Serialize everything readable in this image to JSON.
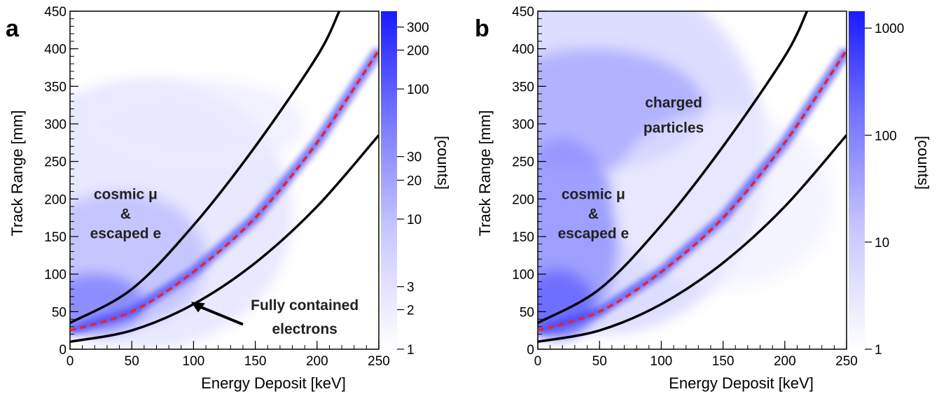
{
  "chart_data": [
    {
      "type": "heatmap",
      "panel_label": "a",
      "xlabel": "Energy Deposit [keV]",
      "ylabel": "Track Range [mm]",
      "xlim": [
        0,
        250
      ],
      "ylim": [
        0,
        450
      ],
      "x_ticks": [
        "0",
        "50",
        "100",
        "150",
        "200",
        "250"
      ],
      "y_ticks": [
        "0",
        "50",
        "100",
        "150",
        "200",
        "250",
        "300",
        "350",
        "400",
        "450"
      ],
      "colorbar": {
        "label": "[counts]",
        "scale": "log",
        "range": [
          1,
          400
        ],
        "ticks": [
          "1",
          "2",
          "3",
          "10",
          "20",
          "30",
          "100",
          "200",
          "300"
        ],
        "color_low": "#ffffff",
        "color_high": "#1a1aff"
      },
      "curves": [
        {
          "style": "solid",
          "color": "#000000",
          "x": [
            0,
            50,
            100,
            150,
            200,
            218
          ],
          "y": [
            35,
            80,
            165,
            270,
            390,
            450
          ]
        },
        {
          "style": "dashed",
          "color": "#ee2222",
          "x": [
            0,
            50,
            100,
            150,
            200,
            250
          ],
          "y": [
            25,
            50,
            103,
            175,
            275,
            398
          ]
        },
        {
          "style": "solid",
          "color": "#000000",
          "x": [
            0,
            50,
            100,
            150,
            200,
            250
          ],
          "y": [
            10,
            25,
            60,
            115,
            190,
            285
          ]
        }
      ],
      "annotations": [
        {
          "lines": [
            "cosmic  μ",
            "&",
            "escaped  e"
          ],
          "x": 45,
          "y": 200
        },
        {
          "lines": [
            "Fully contained",
            "electrons"
          ],
          "x": 190,
          "y": 48
        }
      ]
    },
    {
      "type": "heatmap",
      "panel_label": "b",
      "xlabel": "Energy Deposit [keV]",
      "ylabel": "Track Range [mm]",
      "xlim": [
        0,
        250
      ],
      "ylim": [
        0,
        450
      ],
      "x_ticks": [
        "0",
        "50",
        "100",
        "150",
        "200",
        "250"
      ],
      "y_ticks": [
        "0",
        "50",
        "100",
        "150",
        "200",
        "250",
        "300",
        "350",
        "400",
        "450"
      ],
      "colorbar": {
        "label": "[counts]",
        "scale": "log",
        "range": [
          1,
          1500
        ],
        "ticks": [
          "1",
          "10",
          "100",
          "1000"
        ],
        "color_low": "#ffffff",
        "color_high": "#1a1aff"
      },
      "curves": [
        {
          "style": "solid",
          "color": "#000000",
          "x": [
            0,
            50,
            100,
            150,
            200,
            218
          ],
          "y": [
            35,
            80,
            165,
            270,
            390,
            450
          ]
        },
        {
          "style": "dashed",
          "color": "#ee2222",
          "x": [
            0,
            50,
            100,
            150,
            200,
            250
          ],
          "y": [
            25,
            50,
            103,
            175,
            275,
            398
          ]
        },
        {
          "style": "solid",
          "color": "#000000",
          "x": [
            0,
            50,
            100,
            150,
            200,
            250
          ],
          "y": [
            10,
            25,
            60,
            115,
            190,
            285
          ]
        }
      ],
      "annotations": [
        {
          "lines": [
            "charged",
            "particles"
          ],
          "x": 100,
          "y": 320
        },
        {
          "lines": [
            "cosmic  μ",
            "&",
            "escaped  e"
          ],
          "x": 45,
          "y": 200
        }
      ]
    }
  ]
}
